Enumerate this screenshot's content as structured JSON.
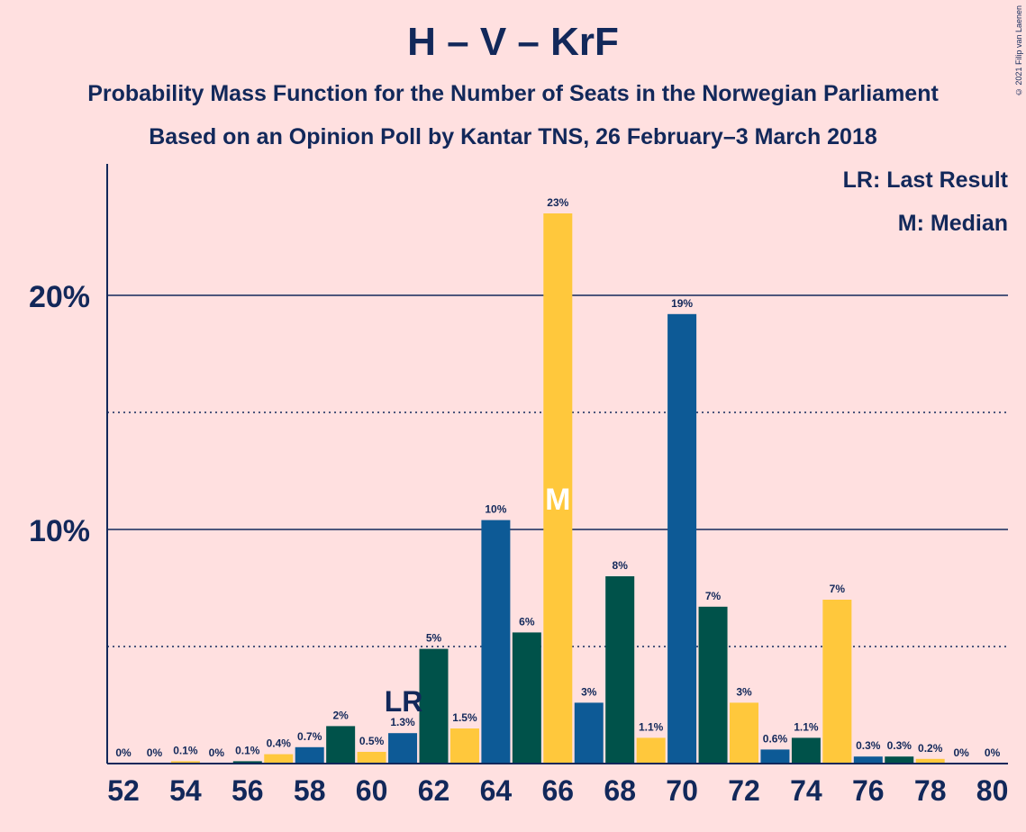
{
  "chart_data": {
    "type": "bar",
    "title": "H – V – KrF",
    "subtitle": "Probability Mass Function for the Number of Seats in the Norwegian Parliament",
    "subtitle2": "Based on an Opinion Poll by Kantar TNS, 26 February–3 March 2018",
    "copyright": "© 2021 Filip van Laenen",
    "legend": {
      "lr": "LR: Last Result",
      "m": "M: Median"
    },
    "x": [
      52,
      53,
      54,
      55,
      56,
      57,
      58,
      59,
      60,
      61,
      62,
      63,
      64,
      65,
      66,
      67,
      68,
      69,
      70,
      71,
      72,
      73,
      74,
      75,
      76,
      77,
      78,
      79,
      80
    ],
    "values": [
      0,
      0,
      0.1,
      0,
      0.1,
      0.4,
      0.7,
      1.6,
      0.5,
      1.3,
      4.9,
      1.5,
      10.4,
      5.6,
      23.5,
      2.6,
      8.0,
      1.1,
      19.2,
      6.7,
      2.6,
      0.6,
      1.1,
      7.0,
      0.3,
      0.3,
      0.2,
      0,
      0
    ],
    "labels": [
      "0%",
      "0%",
      "0.1%",
      "0%",
      "0.1%",
      "0.4%",
      "0.7%",
      "2%",
      "0.5%",
      "1.3%",
      "5%",
      "1.5%",
      "10%",
      "6%",
      "23%",
      "3%",
      "8%",
      "1.1%",
      "19%",
      "7%",
      "3%",
      "0.6%",
      "1.1%",
      "7%",
      "0.3%",
      "0.3%",
      "0.2%",
      "0%",
      "0%"
    ],
    "x_tick_labels": [
      "52",
      "54",
      "56",
      "58",
      "60",
      "62",
      "64",
      "66",
      "68",
      "70",
      "72",
      "74",
      "76",
      "78",
      "80"
    ],
    "y_tick_labels": [
      "10%",
      "20%"
    ],
    "ylim": [
      0,
      25
    ],
    "last_result": 61,
    "last_result_marker": "LR",
    "median": 66,
    "median_marker": "M",
    "grid": {
      "solid": [
        10,
        20
      ],
      "dotted": [
        5,
        15
      ]
    },
    "colors": {
      "background": "#ffe0e0",
      "text": "#12285a",
      "cycle": [
        "#0d5a96",
        "#00524a",
        "#ffc83c"
      ]
    }
  }
}
